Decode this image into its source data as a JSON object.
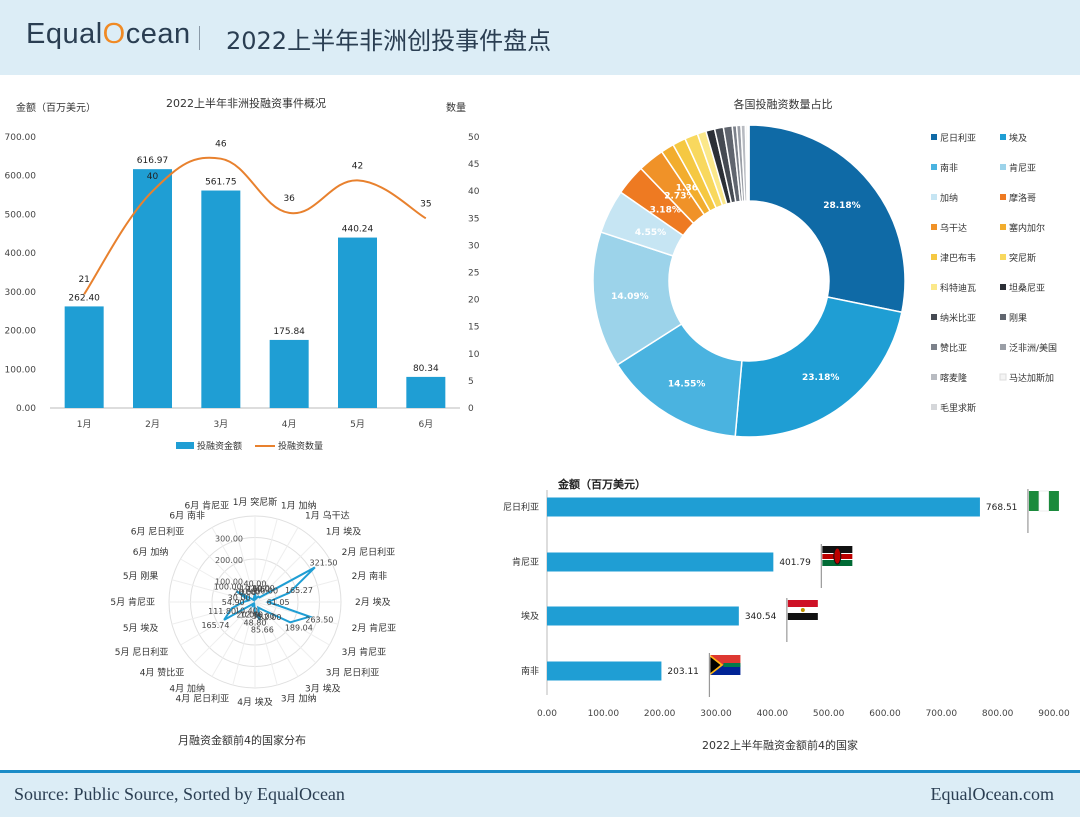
{
  "header": {
    "logo_pre": "Equal",
    "logo_o": "O",
    "logo_post": "cean",
    "title": "2022上半年非洲创投事件盘点"
  },
  "footer": {
    "source": "Source: Public Source, Sorted by EqualOcean",
    "site": "EqualOcean.com"
  },
  "colors": {
    "bar": "#1f9ed4",
    "line": "#e8812e",
    "accent": "#1b8cc7"
  },
  "chart_data": [
    {
      "type": "bar",
      "title": "2022上半年非洲投融资事件概况",
      "ylabel": "金额（百万美元）",
      "y2label": "数量",
      "categories": [
        "1月",
        "2月",
        "3月",
        "4月",
        "5月",
        "6月"
      ],
      "ylim": [
        0,
        700
      ],
      "y2lim": [
        0,
        50
      ],
      "yticks": [
        "0.00",
        "100.00",
        "200.00",
        "300.00",
        "400.00",
        "500.00",
        "600.00",
        "700.00"
      ],
      "y2ticks": [
        "0",
        "5",
        "10",
        "15",
        "20",
        "25",
        "30",
        "35",
        "40",
        "45",
        "50"
      ],
      "series": [
        {
          "name": "投融资金额",
          "kind": "bar",
          "values": [
            262.4,
            616.97,
            561.75,
            175.84,
            440.24,
            80.34
          ],
          "labels": [
            "262.40",
            "616.97",
            "561.75",
            "175.84",
            "440.24",
            "80.34"
          ]
        },
        {
          "name": "投融资数量",
          "kind": "line",
          "values": [
            21,
            40,
            46,
            36,
            42,
            35
          ],
          "labels": [
            "21",
            "40",
            "46",
            "36",
            "42",
            "35"
          ]
        }
      ],
      "legend": "bottom"
    },
    {
      "type": "pie",
      "title": "各国投融资数量占比",
      "categories": [
        "尼日利亚",
        "埃及",
        "南非",
        "肯尼亚",
        "加纳",
        "摩洛哥",
        "乌干达",
        "塞内加尔",
        "津巴布韦",
        "突尼斯",
        "科特迪瓦",
        "坦桑尼亚",
        "纳米比亚",
        "刚果",
        "赞比亚",
        "泛非洲/美国",
        "喀麦隆",
        "马达加斯加",
        "毛里求斯"
      ],
      "values": [
        28.18,
        23.18,
        14.55,
        14.09,
        4.55,
        3.18,
        2.73,
        1.36,
        1.36,
        1.36,
        0.91,
        0.91,
        0.91,
        0.91,
        0.45,
        0.45,
        0.45,
        0.23,
        0.14
      ],
      "slice_labels": [
        "28.18%",
        "23.18%",
        "14.55%",
        "14.09%",
        "4.55%",
        "3.18%",
        "2.73%",
        "1.36%",
        "",
        "",
        "",
        "",
        "",
        "",
        "",
        "",
        "",
        "",
        ""
      ],
      "colors": [
        "#0f6aa6",
        "#1f9ed4",
        "#4ab3e0",
        "#9cd3ea",
        "#c6e5f3",
        "#ee7a22",
        "#f09228",
        "#f2ad2e",
        "#f5c842",
        "#f8d85e",
        "#fbe88a",
        "#2b2f36",
        "#454a52",
        "#60656e",
        "#7c818a",
        "#9a9ea6",
        "#b8bbc1",
        "#f4f4f4",
        "#d5d7da"
      ],
      "legend": "right"
    },
    {
      "type": "radar",
      "title": "月融资金额前4的国家分布",
      "categories": [
        "1月 突尼斯",
        "1月 加纳",
        "1月 乌干达",
        "1月 埃及",
        "2月 尼日利亚",
        "2月 南非",
        "2月 埃及",
        "2月 肯尼亚",
        "3月 肯尼亚",
        "3月 尼日利亚",
        "3月 埃及",
        "3月 加纳",
        "4月 埃及",
        "4月 尼日利亚",
        "4月 加纳",
        "4月 赞比亚",
        "5月 尼日利亚",
        "5月 埃及",
        "5月 肯尼亚",
        "5月 刚果",
        "6月 加纳",
        "6月 尼日利亚",
        "6月 南非",
        "6月 肯尼亚"
      ],
      "values": [
        40,
        15.6,
        30,
        30,
        321.5,
        165.27,
        61.05,
        263.5,
        189.04,
        52,
        30,
        85.66,
        48.8,
        12.9,
        20,
        10.4,
        165.74,
        111.8,
        54.9,
        30,
        100,
        20,
        10,
        19.6
      ],
      "value_labels": [
        "40.00",
        "15.60",
        "30.00",
        "30.00",
        "321.50",
        "165.27",
        "61.05",
        "263.50",
        "189.04",
        "52.00",
        "30.00",
        "85.66",
        "48.80",
        "12.90",
        "20.00",
        "10.40",
        "165.74",
        "111.80",
        "54.90",
        "30.00",
        "100.00",
        "20.00",
        "10.00",
        "19.60"
      ],
      "rings": [
        "100.00",
        "200.00",
        "300.00"
      ],
      "rmax": 400
    },
    {
      "type": "bar",
      "orientation": "horizontal",
      "title": "2022上半年融资金额前4的国家",
      "xlabel": "金额（百万美元）",
      "categories": [
        "尼日利亚",
        "肯尼亚",
        "埃及",
        "南非"
      ],
      "values": [
        768.51,
        401.79,
        340.54,
        203.11
      ],
      "labels": [
        "768.51",
        "401.79",
        "340.54",
        "203.11"
      ],
      "xlim": [
        0,
        900
      ],
      "xticks": [
        "0.00",
        "100.00",
        "200.00",
        "300.00",
        "400.00",
        "500.00",
        "600.00",
        "700.00",
        "800.00",
        "900.00"
      ],
      "flags": [
        "nigeria-flag-icon",
        "kenya-flag-icon",
        "egypt-flag-icon",
        "south-africa-flag-icon"
      ]
    }
  ]
}
